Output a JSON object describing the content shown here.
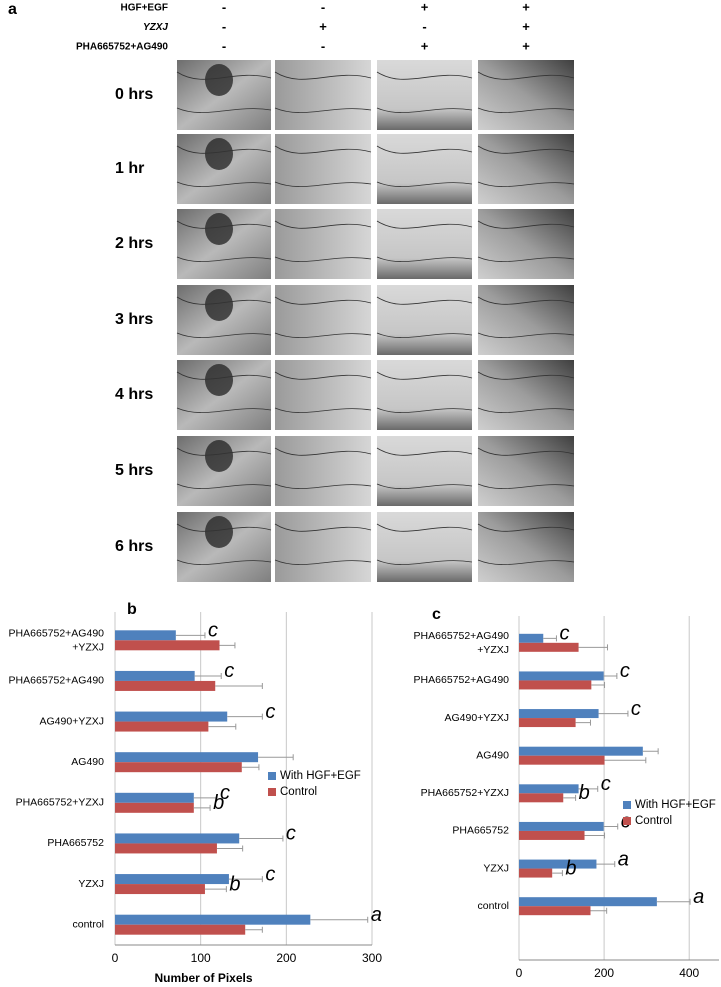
{
  "panel_a": {
    "label": "a",
    "treatments": [
      {
        "name": "HGF+EGF",
        "signs": [
          "-",
          "-",
          "+",
          "+"
        ]
      },
      {
        "name": "YZXJ",
        "signs": [
          "-",
          "+",
          "-",
          "+"
        ]
      },
      {
        "name": "PHA665752+AG490",
        "signs": [
          "-",
          "-",
          "+",
          "+"
        ]
      }
    ],
    "times": [
      "0 hrs",
      "1 hr",
      "2 hrs",
      "3 hrs",
      "4 hrs",
      "5 hrs",
      "6 hrs"
    ]
  },
  "chart_data": [
    {
      "type": "bar",
      "orientation": "horizontal",
      "panel_label": "b",
      "categories": [
        "PHA665752+AG490\n+YZXJ",
        "PHA665752+AG490",
        "AG490+YZXJ",
        "AG490",
        "PHA665752+YZXJ",
        "PHA665752",
        "YZXJ",
        "control"
      ],
      "series": [
        {
          "name": "With HGF+EGF",
          "color": "#4f81bd",
          "values": [
            71,
            93,
            131,
            167,
            92,
            145,
            133,
            228
          ],
          "errors": [
            34,
            31,
            41,
            41,
            27,
            51,
            39,
            67
          ],
          "annotations": [
            "c",
            "c",
            "c",
            null,
            "c",
            "c",
            "c",
            "a"
          ]
        },
        {
          "name": "Control",
          "color": "#c0504d",
          "values": [
            122,
            117,
            109,
            148,
            92,
            119,
            105,
            152
          ],
          "errors": [
            18,
            55,
            32,
            20,
            19,
            30,
            25,
            20
          ],
          "annotations": [
            null,
            null,
            null,
            null,
            "b",
            null,
            "b",
            null
          ]
        }
      ],
      "xlabel": "Number of Pixels",
      "xlim": [
        0,
        300
      ],
      "xticks": [
        0,
        100,
        200,
        300
      ],
      "grid": true,
      "legend": "right"
    },
    {
      "type": "bar",
      "orientation": "horizontal",
      "panel_label": "c",
      "categories": [
        "PHA665752+AG490\n+YZXJ",
        "PHA665752+AG490",
        "AG490+YZXJ",
        "AG490",
        "PHA665752+YZXJ",
        "PHA665752",
        "YZXJ",
        "control"
      ],
      "series": [
        {
          "name": "With HGF+EGF",
          "color": "#4f81bd",
          "values": [
            57,
            199,
            187,
            291,
            140,
            199,
            182,
            324
          ],
          "errors": [
            31,
            31,
            69,
            36,
            45,
            33,
            43,
            78
          ],
          "annotations": [
            "c",
            "c",
            "c",
            null,
            "c",
            "c",
            "a",
            "a"
          ]
        },
        {
          "name": "Control",
          "color": "#c0504d",
          "values": [
            140,
            170,
            133,
            201,
            104,
            154,
            78,
            168
          ],
          "errors": [
            68,
            31,
            35,
            97,
            29,
            47,
            24,
            38
          ],
          "annotations": [
            null,
            null,
            null,
            null,
            "b",
            null,
            "b",
            null
          ]
        }
      ],
      "xlim": [
        0,
        470
      ],
      "xticks": [
        0,
        200,
        400
      ],
      "grid": true,
      "legend": "right"
    }
  ]
}
